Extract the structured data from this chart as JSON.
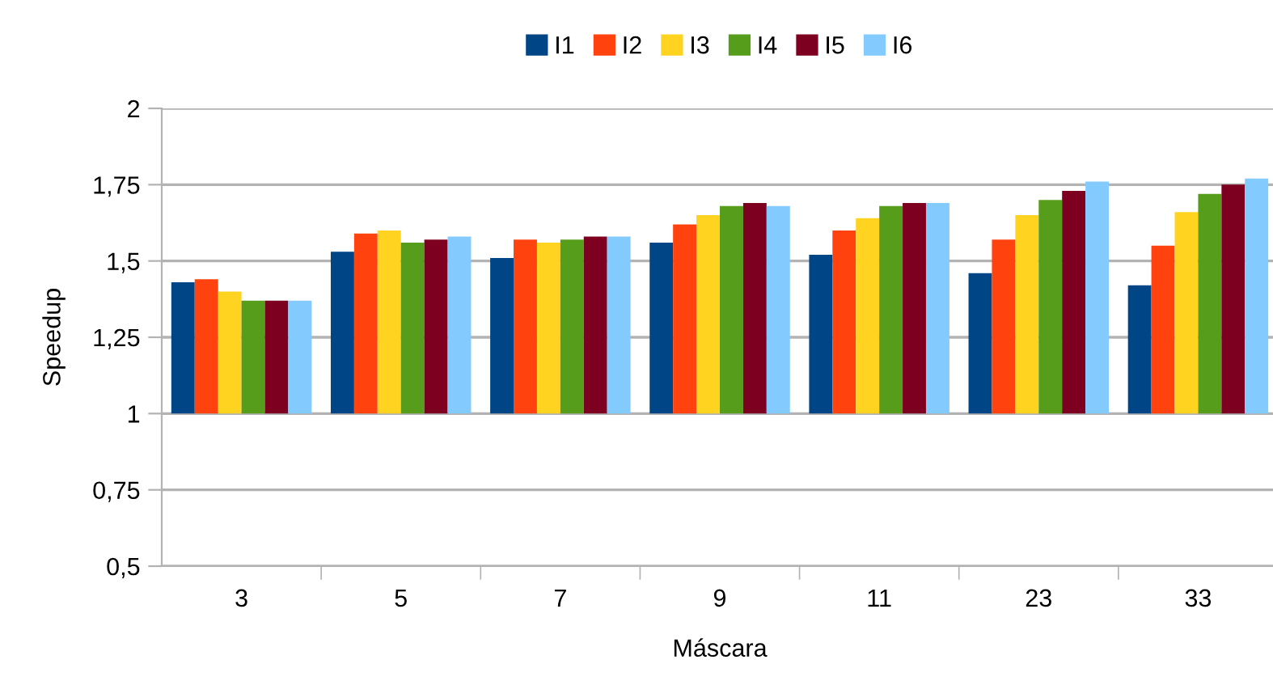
{
  "chart_data": {
    "type": "bar",
    "xlabel": "Máscara",
    "ylabel": "Speedup",
    "categories": [
      "3",
      "5",
      "7",
      "9",
      "11",
      "23",
      "33"
    ],
    "series": [
      {
        "name": "I1",
        "color": "#004586",
        "base": [
          1,
          1,
          1,
          1,
          1,
          1,
          1
        ],
        "values": [
          0.43,
          0.53,
          0.51,
          0.56,
          0.52,
          0.46,
          0.42
        ]
      },
      {
        "name": "I2",
        "color": "#ff420e",
        "base": [
          1,
          1,
          1,
          1,
          1,
          1,
          1
        ],
        "values": [
          0.44,
          0.59,
          0.57,
          0.62,
          0.6,
          0.57,
          0.55
        ]
      },
      {
        "name": "I3",
        "color": "#ffd320",
        "base": [
          1,
          1,
          1,
          1,
          1,
          1,
          1
        ],
        "values": [
          0.4,
          0.6,
          0.56,
          0.65,
          0.64,
          0.65,
          0.66
        ]
      },
      {
        "name": "I4",
        "color": "#579d1c",
        "base": [
          1,
          1,
          1,
          1,
          1,
          1,
          1
        ],
        "values": [
          0.37,
          0.56,
          0.57,
          0.68,
          0.68,
          0.7,
          0.72
        ]
      },
      {
        "name": "I5",
        "color": "#7e0021",
        "base": [
          1,
          1,
          1,
          1,
          1,
          1,
          1
        ],
        "values": [
          0.37,
          0.57,
          0.58,
          0.69,
          0.69,
          0.73,
          0.75
        ]
      },
      {
        "name": "I6",
        "color": "#83caff",
        "base": [
          1,
          1,
          1,
          1,
          1,
          1,
          1
        ],
        "values": [
          0.37,
          0.58,
          0.58,
          0.68,
          0.69,
          0.76,
          0.77
        ]
      }
    ],
    "ylim": [
      0.5,
      2
    ],
    "yticks": [
      {
        "value": 0.5,
        "label": "0,5"
      },
      {
        "value": 0.75,
        "label": "0,75"
      },
      {
        "value": 1,
        "label": "1"
      },
      {
        "value": 1.25,
        "label": "1,25"
      },
      {
        "value": 1.5,
        "label": "1,5"
      },
      {
        "value": 1.75,
        "label": "1,75"
      },
      {
        "value": 2,
        "label": "2"
      }
    ],
    "grid": "y",
    "legend": "top"
  }
}
